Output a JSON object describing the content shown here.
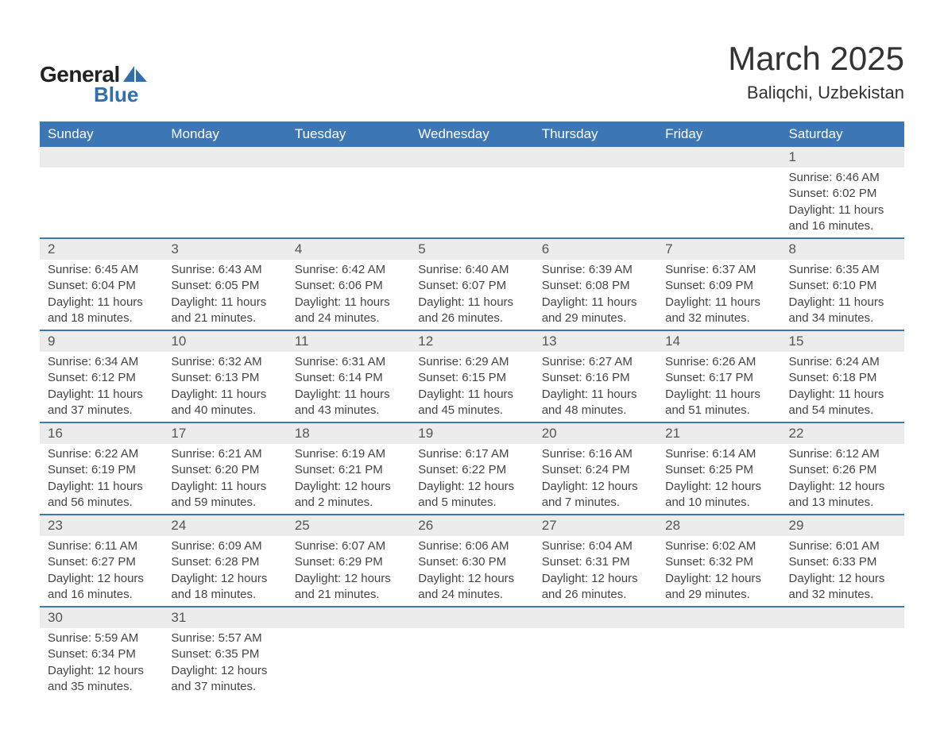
{
  "brand": {
    "general": "General",
    "blue": "Blue",
    "shape_color": "#2f6fad"
  },
  "title": {
    "month": "March 2025",
    "location": "Baliqchi, Uzbekistan"
  },
  "style": {
    "header_bg": "#3c76b4",
    "header_fg": "#ffffff",
    "daynum_bg": "#ececec",
    "row_border": "#3c76b4",
    "body_bg": "#ffffff",
    "text_color": "#444444",
    "title_fontsize": 42,
    "location_fontsize": 22,
    "header_fontsize": 17,
    "daynum_fontsize": 17,
    "detail_fontsize": 15
  },
  "weekdays": [
    "Sunday",
    "Monday",
    "Tuesday",
    "Wednesday",
    "Thursday",
    "Friday",
    "Saturday"
  ],
  "weeks": [
    [
      null,
      null,
      null,
      null,
      null,
      null,
      {
        "n": "1",
        "sr": "Sunrise: 6:46 AM",
        "ss": "Sunset: 6:02 PM",
        "d1": "Daylight: 11 hours",
        "d2": "and 16 minutes."
      }
    ],
    [
      {
        "n": "2",
        "sr": "Sunrise: 6:45 AM",
        "ss": "Sunset: 6:04 PM",
        "d1": "Daylight: 11 hours",
        "d2": "and 18 minutes."
      },
      {
        "n": "3",
        "sr": "Sunrise: 6:43 AM",
        "ss": "Sunset: 6:05 PM",
        "d1": "Daylight: 11 hours",
        "d2": "and 21 minutes."
      },
      {
        "n": "4",
        "sr": "Sunrise: 6:42 AM",
        "ss": "Sunset: 6:06 PM",
        "d1": "Daylight: 11 hours",
        "d2": "and 24 minutes."
      },
      {
        "n": "5",
        "sr": "Sunrise: 6:40 AM",
        "ss": "Sunset: 6:07 PM",
        "d1": "Daylight: 11 hours",
        "d2": "and 26 minutes."
      },
      {
        "n": "6",
        "sr": "Sunrise: 6:39 AM",
        "ss": "Sunset: 6:08 PM",
        "d1": "Daylight: 11 hours",
        "d2": "and 29 minutes."
      },
      {
        "n": "7",
        "sr": "Sunrise: 6:37 AM",
        "ss": "Sunset: 6:09 PM",
        "d1": "Daylight: 11 hours",
        "d2": "and 32 minutes."
      },
      {
        "n": "8",
        "sr": "Sunrise: 6:35 AM",
        "ss": "Sunset: 6:10 PM",
        "d1": "Daylight: 11 hours",
        "d2": "and 34 minutes."
      }
    ],
    [
      {
        "n": "9",
        "sr": "Sunrise: 6:34 AM",
        "ss": "Sunset: 6:12 PM",
        "d1": "Daylight: 11 hours",
        "d2": "and 37 minutes."
      },
      {
        "n": "10",
        "sr": "Sunrise: 6:32 AM",
        "ss": "Sunset: 6:13 PM",
        "d1": "Daylight: 11 hours",
        "d2": "and 40 minutes."
      },
      {
        "n": "11",
        "sr": "Sunrise: 6:31 AM",
        "ss": "Sunset: 6:14 PM",
        "d1": "Daylight: 11 hours",
        "d2": "and 43 minutes."
      },
      {
        "n": "12",
        "sr": "Sunrise: 6:29 AM",
        "ss": "Sunset: 6:15 PM",
        "d1": "Daylight: 11 hours",
        "d2": "and 45 minutes."
      },
      {
        "n": "13",
        "sr": "Sunrise: 6:27 AM",
        "ss": "Sunset: 6:16 PM",
        "d1": "Daylight: 11 hours",
        "d2": "and 48 minutes."
      },
      {
        "n": "14",
        "sr": "Sunrise: 6:26 AM",
        "ss": "Sunset: 6:17 PM",
        "d1": "Daylight: 11 hours",
        "d2": "and 51 minutes."
      },
      {
        "n": "15",
        "sr": "Sunrise: 6:24 AM",
        "ss": "Sunset: 6:18 PM",
        "d1": "Daylight: 11 hours",
        "d2": "and 54 minutes."
      }
    ],
    [
      {
        "n": "16",
        "sr": "Sunrise: 6:22 AM",
        "ss": "Sunset: 6:19 PM",
        "d1": "Daylight: 11 hours",
        "d2": "and 56 minutes."
      },
      {
        "n": "17",
        "sr": "Sunrise: 6:21 AM",
        "ss": "Sunset: 6:20 PM",
        "d1": "Daylight: 11 hours",
        "d2": "and 59 minutes."
      },
      {
        "n": "18",
        "sr": "Sunrise: 6:19 AM",
        "ss": "Sunset: 6:21 PM",
        "d1": "Daylight: 12 hours",
        "d2": "and 2 minutes."
      },
      {
        "n": "19",
        "sr": "Sunrise: 6:17 AM",
        "ss": "Sunset: 6:22 PM",
        "d1": "Daylight: 12 hours",
        "d2": "and 5 minutes."
      },
      {
        "n": "20",
        "sr": "Sunrise: 6:16 AM",
        "ss": "Sunset: 6:24 PM",
        "d1": "Daylight: 12 hours",
        "d2": "and 7 minutes."
      },
      {
        "n": "21",
        "sr": "Sunrise: 6:14 AM",
        "ss": "Sunset: 6:25 PM",
        "d1": "Daylight: 12 hours",
        "d2": "and 10 minutes."
      },
      {
        "n": "22",
        "sr": "Sunrise: 6:12 AM",
        "ss": "Sunset: 6:26 PM",
        "d1": "Daylight: 12 hours",
        "d2": "and 13 minutes."
      }
    ],
    [
      {
        "n": "23",
        "sr": "Sunrise: 6:11 AM",
        "ss": "Sunset: 6:27 PM",
        "d1": "Daylight: 12 hours",
        "d2": "and 16 minutes."
      },
      {
        "n": "24",
        "sr": "Sunrise: 6:09 AM",
        "ss": "Sunset: 6:28 PM",
        "d1": "Daylight: 12 hours",
        "d2": "and 18 minutes."
      },
      {
        "n": "25",
        "sr": "Sunrise: 6:07 AM",
        "ss": "Sunset: 6:29 PM",
        "d1": "Daylight: 12 hours",
        "d2": "and 21 minutes."
      },
      {
        "n": "26",
        "sr": "Sunrise: 6:06 AM",
        "ss": "Sunset: 6:30 PM",
        "d1": "Daylight: 12 hours",
        "d2": "and 24 minutes."
      },
      {
        "n": "27",
        "sr": "Sunrise: 6:04 AM",
        "ss": "Sunset: 6:31 PM",
        "d1": "Daylight: 12 hours",
        "d2": "and 26 minutes."
      },
      {
        "n": "28",
        "sr": "Sunrise: 6:02 AM",
        "ss": "Sunset: 6:32 PM",
        "d1": "Daylight: 12 hours",
        "d2": "and 29 minutes."
      },
      {
        "n": "29",
        "sr": "Sunrise: 6:01 AM",
        "ss": "Sunset: 6:33 PM",
        "d1": "Daylight: 12 hours",
        "d2": "and 32 minutes."
      }
    ],
    [
      {
        "n": "30",
        "sr": "Sunrise: 5:59 AM",
        "ss": "Sunset: 6:34 PM",
        "d1": "Daylight: 12 hours",
        "d2": "and 35 minutes."
      },
      {
        "n": "31",
        "sr": "Sunrise: 5:57 AM",
        "ss": "Sunset: 6:35 PM",
        "d1": "Daylight: 12 hours",
        "d2": "and 37 minutes."
      },
      null,
      null,
      null,
      null,
      null
    ]
  ]
}
